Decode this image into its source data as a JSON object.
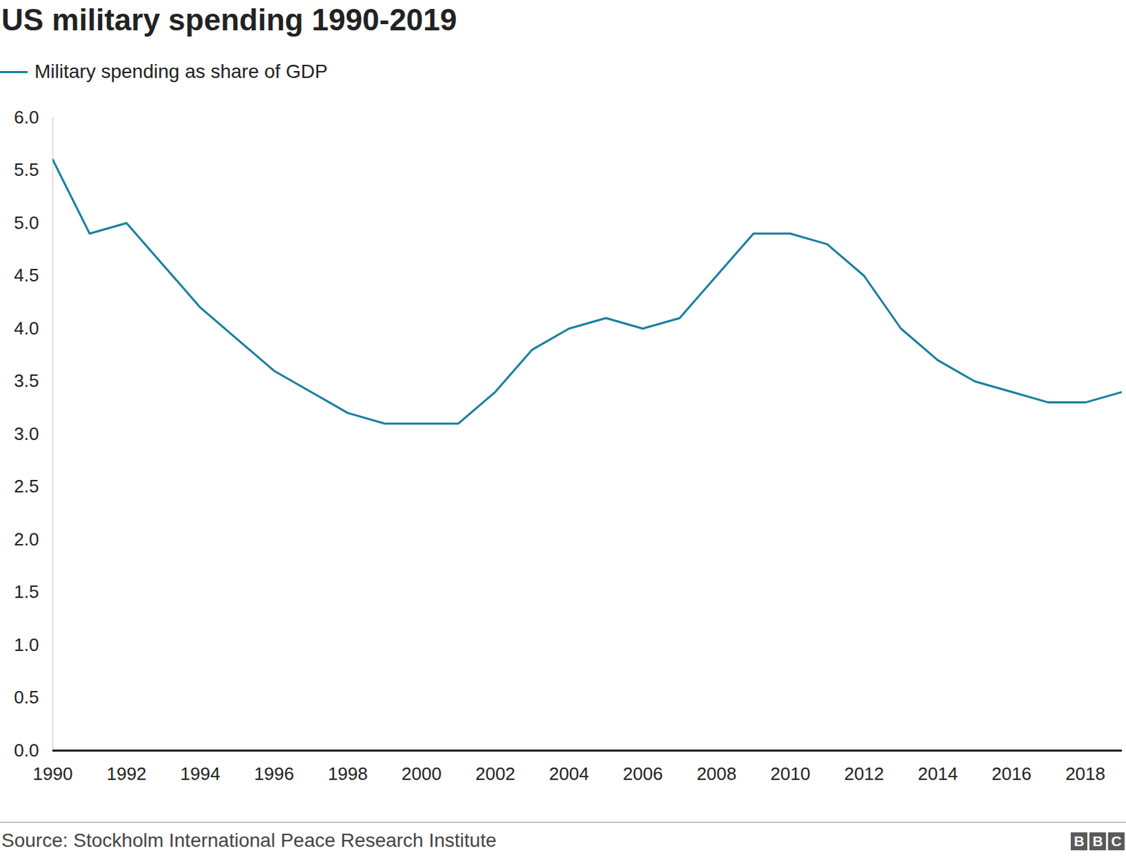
{
  "chart_data": {
    "type": "line",
    "title": "US military spending 1990-2019",
    "x": [
      1990,
      1991,
      1992,
      1993,
      1994,
      1995,
      1996,
      1997,
      1998,
      1999,
      2000,
      2001,
      2002,
      2003,
      2004,
      2005,
      2006,
      2007,
      2008,
      2009,
      2010,
      2011,
      2012,
      2013,
      2014,
      2015,
      2016,
      2017,
      2018,
      2019
    ],
    "series": [
      {
        "name": "Military spending as share of GDP",
        "color": "#1a7fa0",
        "values": [
          5.6,
          4.9,
          5.0,
          4.6,
          4.2,
          3.9,
          3.6,
          3.4,
          3.2,
          3.1,
          3.1,
          3.1,
          3.4,
          3.8,
          4.0,
          4.1,
          4.0,
          4.1,
          4.5,
          4.9,
          4.9,
          4.8,
          4.5,
          4.0,
          3.7,
          3.5,
          3.4,
          3.3,
          3.3,
          3.4
        ]
      }
    ],
    "xlim": [
      1990,
      2019
    ],
    "xticks": [
      1990,
      1992,
      1994,
      1996,
      1998,
      2000,
      2002,
      2004,
      2006,
      2008,
      2010,
      2012,
      2014,
      2016,
      2018
    ],
    "ylim": [
      0,
      6
    ],
    "yticks": [
      {
        "value": 0,
        "label": "0.0"
      },
      0.5,
      {
        "value": 1,
        "label": "1.0"
      },
      1.5,
      {
        "value": 2,
        "label": "2.0"
      },
      2.5,
      {
        "value": 3,
        "label": "3.0"
      },
      3.5,
      {
        "value": 4,
        "label": "4.0"
      },
      4.5,
      {
        "value": 5,
        "label": "5.0"
      },
      5.5,
      {
        "value": 6,
        "label": "6.0"
      }
    ],
    "grid": false,
    "legend": "top-left",
    "source": "Source: Stockholm International Peace Research Institute",
    "logo": "BBC"
  }
}
